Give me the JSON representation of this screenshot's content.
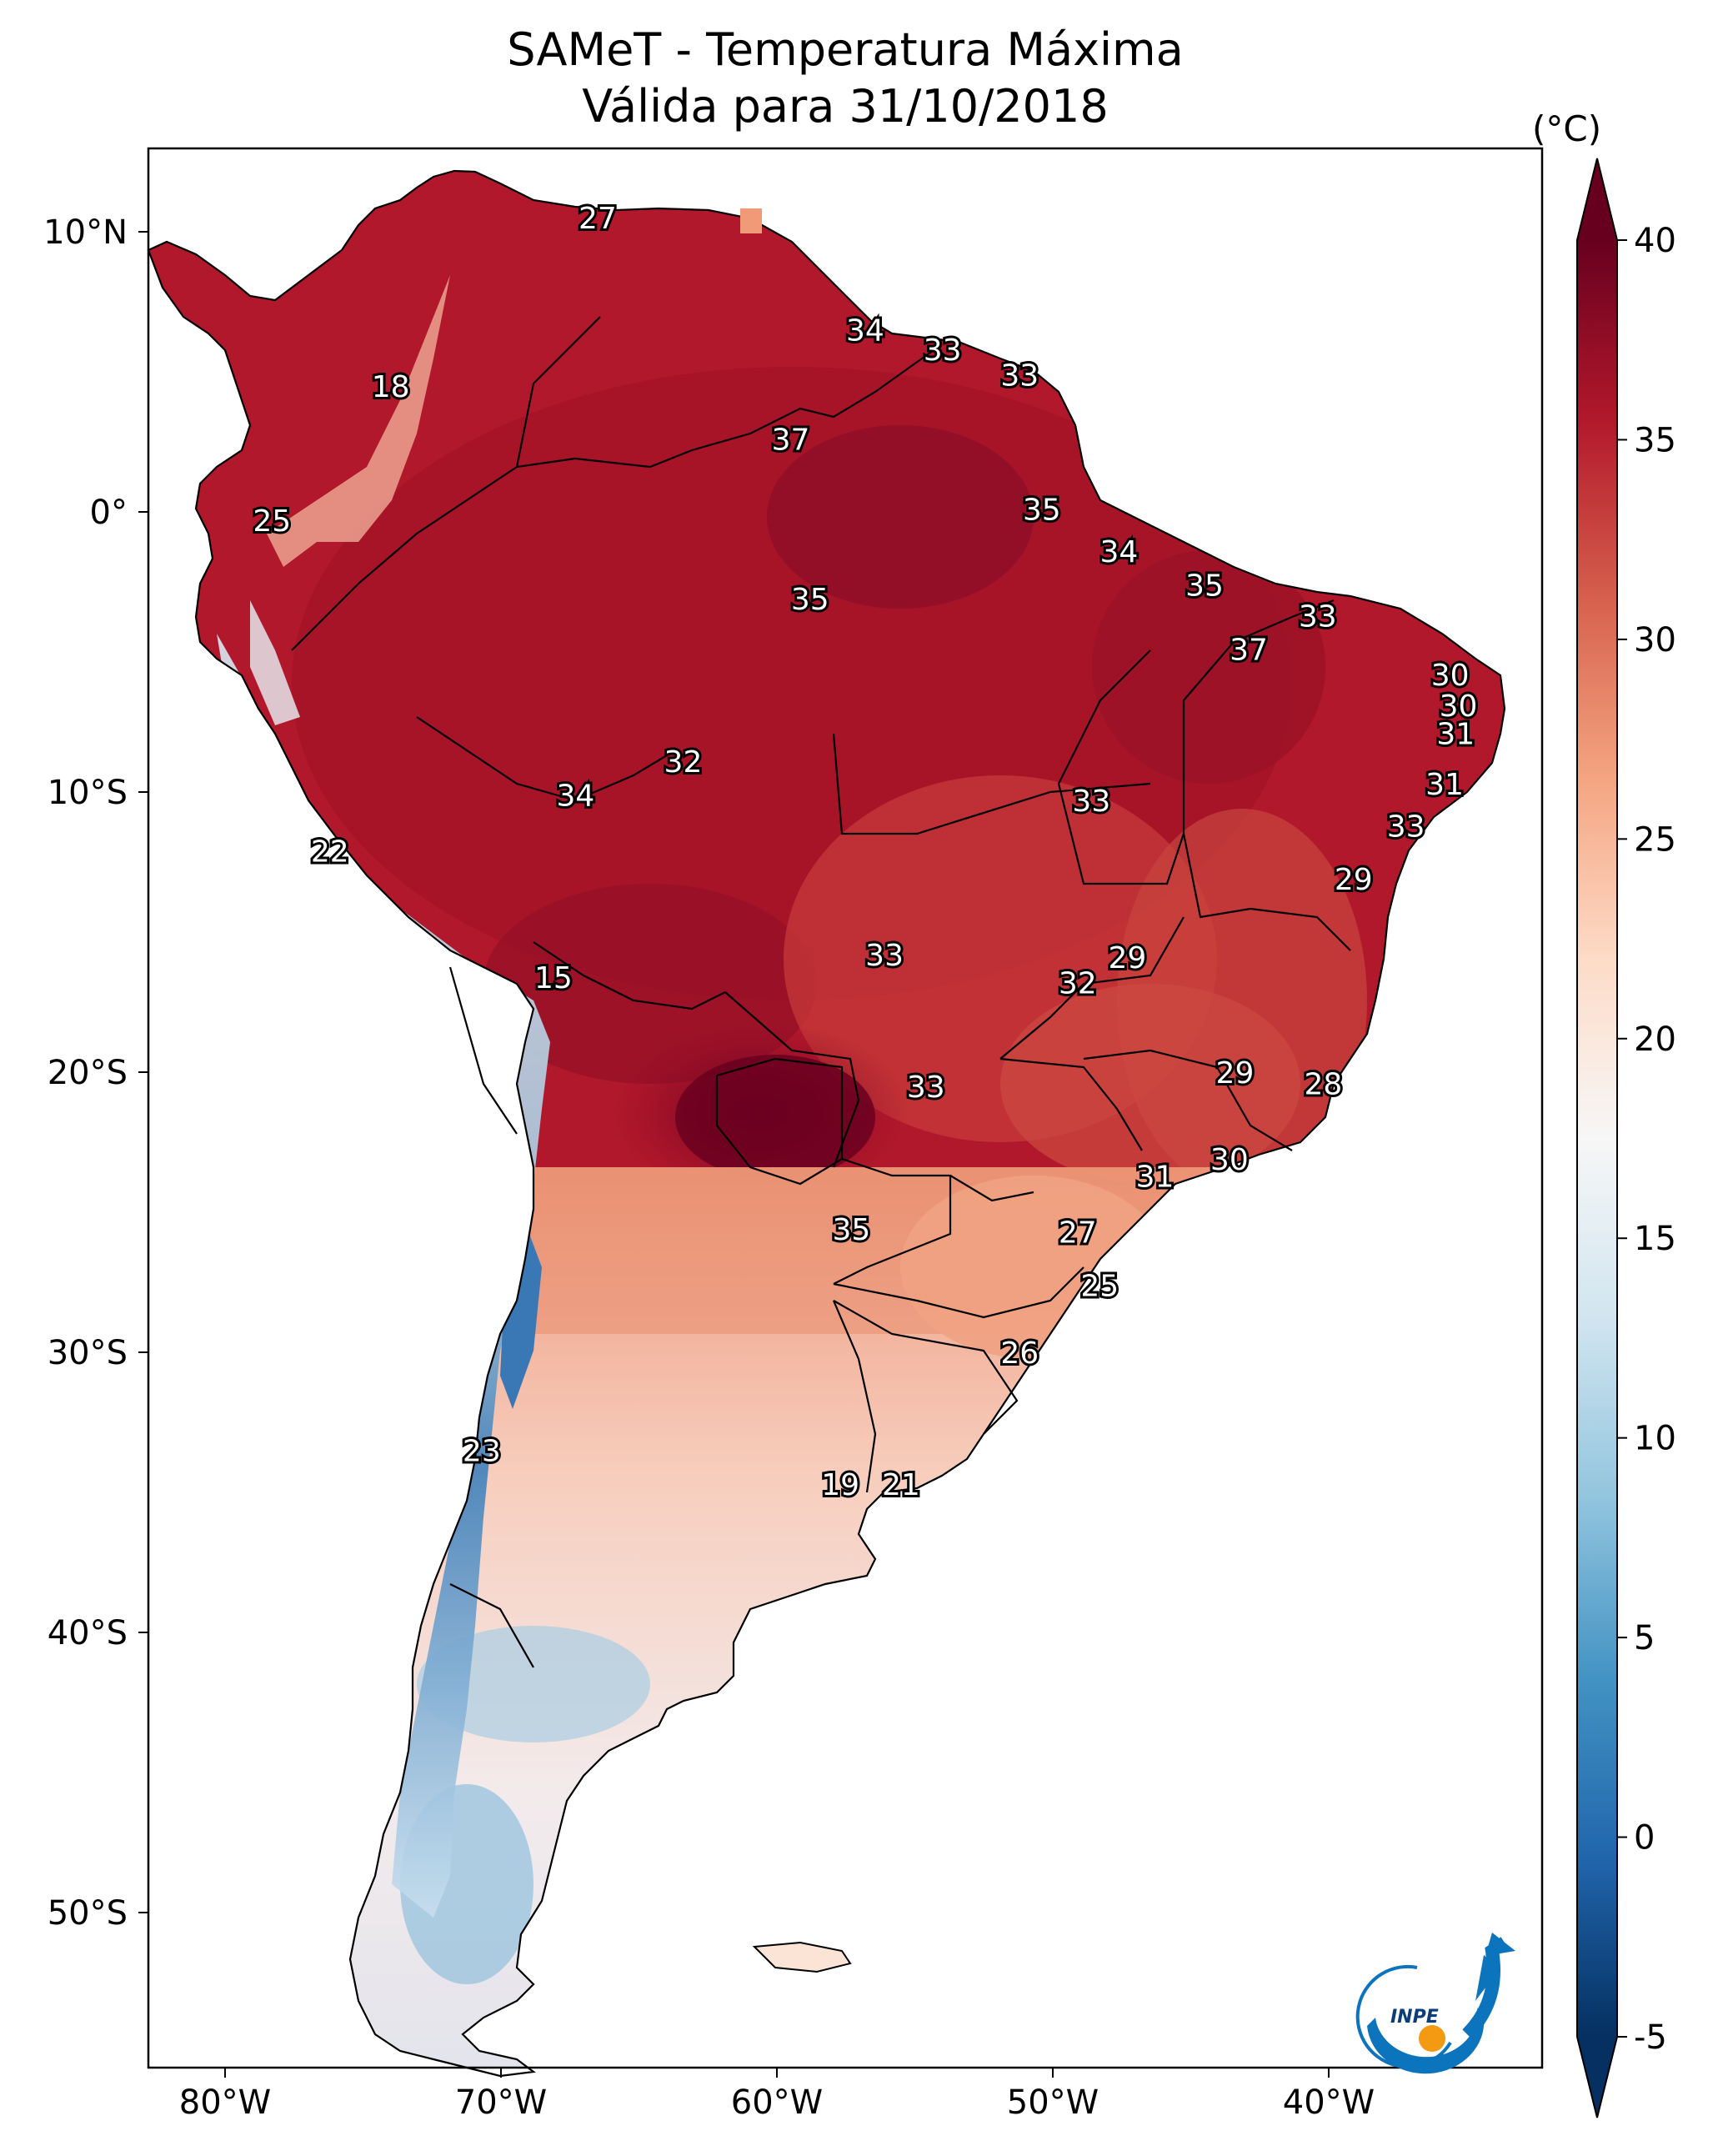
{
  "title_line1": "SAMeT - Temperatura Máxima",
  "title_line2": "Válida para 31/10/2018",
  "colorbar": {
    "unit": "(°C)",
    "min": -5,
    "max": 40,
    "ticks": [
      "40",
      "35",
      "30",
      "25",
      "20",
      "15",
      "10",
      "5",
      "0",
      "-5"
    ],
    "colors": [
      "#053061",
      "#2166ac",
      "#4393c3",
      "#92c5de",
      "#d1e5f0",
      "#f7f7f7",
      "#fddbc7",
      "#f4a582",
      "#d6604d",
      "#b2182b",
      "#67001f"
    ]
  },
  "axes": {
    "lon_ticks": [
      "80°W",
      "70°W",
      "60°W",
      "50°W",
      "40°W"
    ],
    "lat_ticks": [
      "10°N",
      "0°",
      "10°S",
      "20°S",
      "30°S",
      "40°S",
      "50°S"
    ]
  },
  "logo_text": "INPE",
  "labels": [
    {
      "t": "27",
      "lon": -66.5,
      "lat": 10.5
    },
    {
      "t": "18",
      "lon": -74,
      "lat": 4.5
    },
    {
      "t": "34",
      "lon": -56.8,
      "lat": 6.5
    },
    {
      "t": "33",
      "lon": -54,
      "lat": 5.8
    },
    {
      "t": "33",
      "lon": -51.2,
      "lat": 4.9
    },
    {
      "t": "37",
      "lon": -59.5,
      "lat": 2.6
    },
    {
      "t": "25",
      "lon": -78.3,
      "lat": -0.3
    },
    {
      "t": "35",
      "lon": -50.4,
      "lat": 0.1
    },
    {
      "t": "34",
      "lon": -47.6,
      "lat": -1.4
    },
    {
      "t": "35",
      "lon": -44.5,
      "lat": -2.6
    },
    {
      "t": "35",
      "lon": -58.8,
      "lat": -3.1
    },
    {
      "t": "33",
      "lon": -40.4,
      "lat": -3.7
    },
    {
      "t": "37",
      "lon": -42.9,
      "lat": -4.9
    },
    {
      "t": "30",
      "lon": -35.6,
      "lat": -5.8
    },
    {
      "t": "30",
      "lon": -35.3,
      "lat": -6.9
    },
    {
      "t": "31",
      "lon": -35.4,
      "lat": -7.9
    },
    {
      "t": "32",
      "lon": -63.4,
      "lat": -8.9
    },
    {
      "t": "31",
      "lon": -35.8,
      "lat": -9.7
    },
    {
      "t": "34",
      "lon": -67.3,
      "lat": -10.1
    },
    {
      "t": "33",
      "lon": -48.6,
      "lat": -10.3
    },
    {
      "t": "33",
      "lon": -37.2,
      "lat": -11.2
    },
    {
      "t": "22",
      "lon": -76.2,
      "lat": -12.1
    },
    {
      "t": "29",
      "lon": -39.1,
      "lat": -13.1
    },
    {
      "t": "33",
      "lon": -56.1,
      "lat": -15.8
    },
    {
      "t": "29",
      "lon": -47.3,
      "lat": -15.9
    },
    {
      "t": "32",
      "lon": -49.1,
      "lat": -16.8
    },
    {
      "t": "15",
      "lon": -68.1,
      "lat": -16.6
    },
    {
      "t": "29",
      "lon": -43.4,
      "lat": -20.0
    },
    {
      "t": "28",
      "lon": -40.2,
      "lat": -20.4
    },
    {
      "t": "33",
      "lon": -54.6,
      "lat": -20.5
    },
    {
      "t": "30",
      "lon": -43.6,
      "lat": -23.1
    },
    {
      "t": "31",
      "lon": -46.3,
      "lat": -23.7
    },
    {
      "t": "35",
      "lon": -57.3,
      "lat": -25.6
    },
    {
      "t": "27",
      "lon": -49.1,
      "lat": -25.7
    },
    {
      "t": "25",
      "lon": -48.3,
      "lat": -27.6
    },
    {
      "t": "26",
      "lon": -51.2,
      "lat": -30.0
    },
    {
      "t": "23",
      "lon": -70.7,
      "lat": -33.5
    },
    {
      "t": "19",
      "lon": -57.7,
      "lat": -34.7
    },
    {
      "t": "21",
      "lon": -55.5,
      "lat": -34.7
    }
  ]
}
